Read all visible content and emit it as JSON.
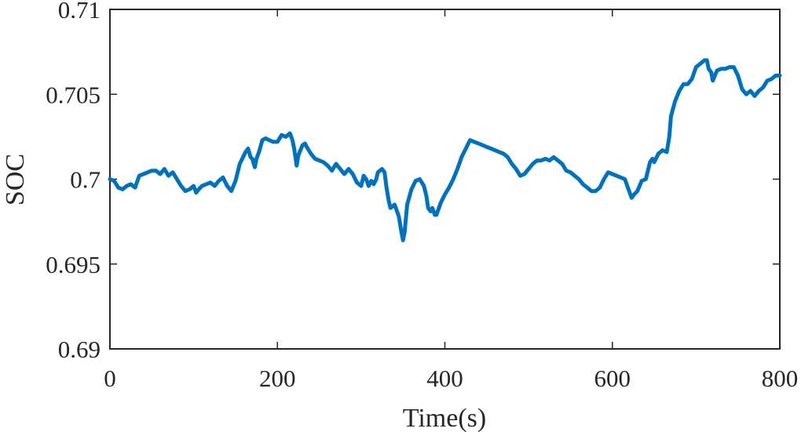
{
  "chart_data": {
    "type": "line",
    "title": "",
    "xlabel": "Time(s)",
    "ylabel": "SOC",
    "xlim": [
      0,
      800
    ],
    "ylim": [
      0.69,
      0.71
    ],
    "xticks": [
      0,
      200,
      400,
      600,
      800
    ],
    "xtick_labels": [
      "0",
      "200",
      "400",
      "600",
      "800"
    ],
    "yticks": [
      0.69,
      0.695,
      0.7,
      0.705,
      0.71
    ],
    "ytick_labels": [
      "0.69",
      "0.695",
      "0.7",
      "0.705",
      "0.71"
    ],
    "grid": false,
    "legend": "none",
    "line_color": "#0072BD",
    "series": [
      {
        "x": [
          0,
          5,
          10,
          15,
          20,
          25,
          30,
          35,
          40,
          45,
          50,
          55,
          60,
          65,
          70,
          75,
          80,
          85,
          90,
          95,
          100,
          103,
          106,
          110,
          115,
          120,
          125,
          130,
          135,
          140,
          145,
          150,
          155,
          158,
          162,
          165,
          168,
          170,
          173,
          175,
          178,
          182,
          186,
          190,
          195,
          200,
          205,
          210,
          215,
          218,
          220,
          223,
          225,
          230,
          233,
          235,
          240,
          245,
          250,
          255,
          260,
          265,
          270,
          275,
          280,
          285,
          290,
          295,
          300,
          303,
          306,
          309,
          312,
          315,
          318,
          320,
          325,
          328,
          330,
          333,
          335,
          340,
          345,
          348,
          350,
          352,
          355,
          360,
          365,
          370,
          375,
          378,
          380,
          383,
          385,
          388,
          390,
          395,
          400,
          405,
          410,
          415,
          420,
          425,
          430,
          435,
          440,
          445,
          450,
          455,
          460,
          465,
          470,
          475,
          480,
          485,
          490,
          495,
          500,
          505,
          510,
          515,
          520,
          525,
          530,
          535,
          540,
          545,
          550,
          555,
          560,
          565,
          570,
          575,
          580,
          585,
          590,
          595,
          600,
          605,
          610,
          615,
          620,
          623,
          626,
          630,
          635,
          640,
          643,
          645,
          648,
          650,
          655,
          660,
          665,
          668,
          670,
          675,
          680,
          685,
          690,
          695,
          700,
          705,
          710,
          713,
          715,
          718,
          720,
          725,
          730,
          735,
          740,
          745,
          750,
          755,
          760,
          765,
          770,
          775,
          780,
          785,
          790,
          795,
          800
        ],
        "y": [
          0.7,
          0.6999,
          0.6995,
          0.6994,
          0.6996,
          0.6997,
          0.6995,
          0.7002,
          0.7003,
          0.7004,
          0.7005,
          0.7005,
          0.7003,
          0.7006,
          0.7002,
          0.7004,
          0.7,
          0.6996,
          0.6993,
          0.6994,
          0.6996,
          0.6992,
          0.6994,
          0.6996,
          0.6997,
          0.6998,
          0.6996,
          0.6999,
          0.7001,
          0.6996,
          0.6993,
          0.6999,
          0.7009,
          0.7012,
          0.7016,
          0.7018,
          0.7013,
          0.7012,
          0.7007,
          0.7012,
          0.7016,
          0.7023,
          0.7024,
          0.7023,
          0.7022,
          0.7022,
          0.7026,
          0.7025,
          0.7027,
          0.7023,
          0.7018,
          0.7008,
          0.7014,
          0.702,
          0.7021,
          0.7019,
          0.7015,
          0.7012,
          0.7011,
          0.701,
          0.7008,
          0.7005,
          0.7009,
          0.7006,
          0.7003,
          0.7006,
          0.7003,
          0.6998,
          0.6996,
          0.7002,
          0.7,
          0.6996,
          0.6999,
          0.6997,
          0.7,
          0.7004,
          0.7006,
          0.7004,
          0.6996,
          0.6987,
          0.6983,
          0.6985,
          0.6978,
          0.6969,
          0.6964,
          0.6969,
          0.6985,
          0.6994,
          0.6999,
          0.7,
          0.6996,
          0.699,
          0.6983,
          0.6981,
          0.6983,
          0.6979,
          0.6979,
          0.6986,
          0.6991,
          0.6995,
          0.7,
          0.7006,
          0.7013,
          0.7018,
          0.7023,
          0.7022,
          0.7021,
          0.702,
          0.7019,
          0.7018,
          0.7017,
          0.7016,
          0.7015,
          0.7013,
          0.7009,
          0.7006,
          0.7002,
          0.7003,
          0.7006,
          0.7009,
          0.7011,
          0.7011,
          0.7012,
          0.7011,
          0.7013,
          0.7011,
          0.7009,
          0.7005,
          0.7004,
          0.7002,
          0.7,
          0.6997,
          0.6995,
          0.6993,
          0.6993,
          0.6995,
          0.7,
          0.7004,
          0.7003,
          0.7002,
          0.7001,
          0.7,
          0.6993,
          0.6989,
          0.6991,
          0.6993,
          0.6999,
          0.7,
          0.7006,
          0.701,
          0.7012,
          0.701,
          0.7015,
          0.7017,
          0.7016,
          0.7025,
          0.7037,
          0.7046,
          0.7052,
          0.7056,
          0.7056,
          0.7059,
          0.7066,
          0.7068,
          0.707,
          0.707,
          0.7065,
          0.7063,
          0.7058,
          0.7064,
          0.7065,
          0.7065,
          0.7066,
          0.7066,
          0.7061,
          0.7053,
          0.705,
          0.7052,
          0.7049,
          0.7052,
          0.7054,
          0.7058,
          0.7059,
          0.7061,
          0.7061
        ]
      }
    ]
  }
}
